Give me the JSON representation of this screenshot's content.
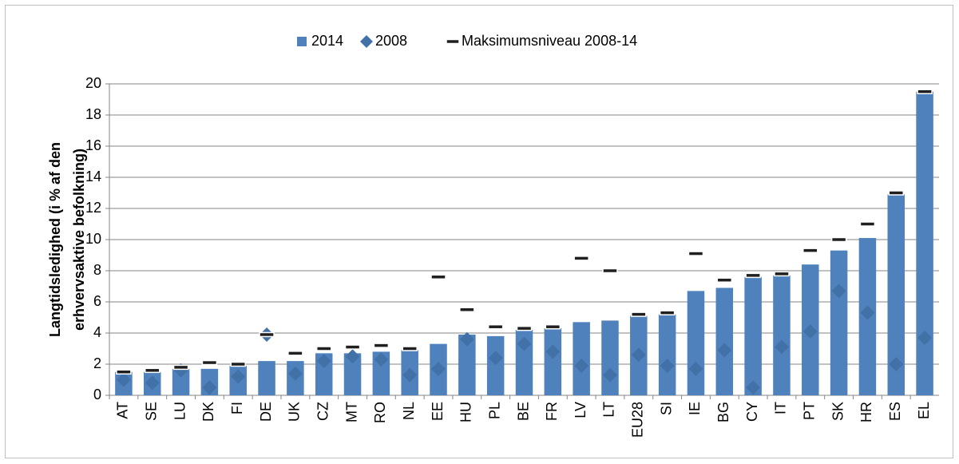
{
  "chart_data": {
    "type": "bar",
    "ylabel": [
      "Langtidsledighed (i % af den",
      "erhvervsaktive befolkning)"
    ],
    "categories": [
      "AT",
      "SE",
      "LU",
      "DK",
      "FI",
      "DE",
      "UK",
      "CZ",
      "MT",
      "RO",
      "NL",
      "EE",
      "HU",
      "PL",
      "BE",
      "FR",
      "LV",
      "LT",
      "EU28",
      "SI",
      "IE",
      "BG",
      "CY",
      "IT",
      "PT",
      "SK",
      "HR",
      "ES",
      "EL"
    ],
    "series": [
      {
        "name": "2014",
        "kind": "bar",
        "color": "#4f81bd",
        "values": [
          1.5,
          1.5,
          1.7,
          1.7,
          1.9,
          2.2,
          2.2,
          2.7,
          2.7,
          2.8,
          2.9,
          3.3,
          3.9,
          3.8,
          4.2,
          4.3,
          4.7,
          4.8,
          5.1,
          5.2,
          6.7,
          6.9,
          7.6,
          7.7,
          8.4,
          9.3,
          10.1,
          12.9,
          19.5
        ]
      },
      {
        "name": "2008",
        "kind": "diamond",
        "color": "#4271a8",
        "values": [
          1.0,
          0.8,
          1.6,
          0.5,
          1.2,
          3.9,
          1.4,
          2.2,
          2.5,
          2.3,
          1.3,
          1.7,
          3.6,
          2.4,
          3.3,
          2.8,
          1.9,
          1.3,
          2.6,
          1.9,
          1.7,
          2.9,
          0.5,
          3.1,
          4.1,
          6.7,
          5.3,
          2.0,
          3.7
        ]
      },
      {
        "name": "Maksimumsniveau 2008-14",
        "kind": "dash",
        "color": "#1f1f1f",
        "values": [
          1.5,
          1.6,
          1.8,
          2.1,
          2.0,
          3.9,
          2.7,
          3.0,
          3.1,
          3.2,
          3.0,
          7.6,
          5.5,
          4.4,
          4.3,
          4.4,
          8.8,
          8.0,
          5.2,
          5.3,
          9.1,
          7.4,
          7.7,
          7.8,
          9.3,
          10.0,
          11.0,
          13.0,
          19.5
        ]
      }
    ],
    "ylim": [
      0,
      20
    ],
    "yticks": [
      0,
      2,
      4,
      6,
      8,
      10,
      12,
      14,
      16,
      18,
      20
    ],
    "grid": true
  }
}
